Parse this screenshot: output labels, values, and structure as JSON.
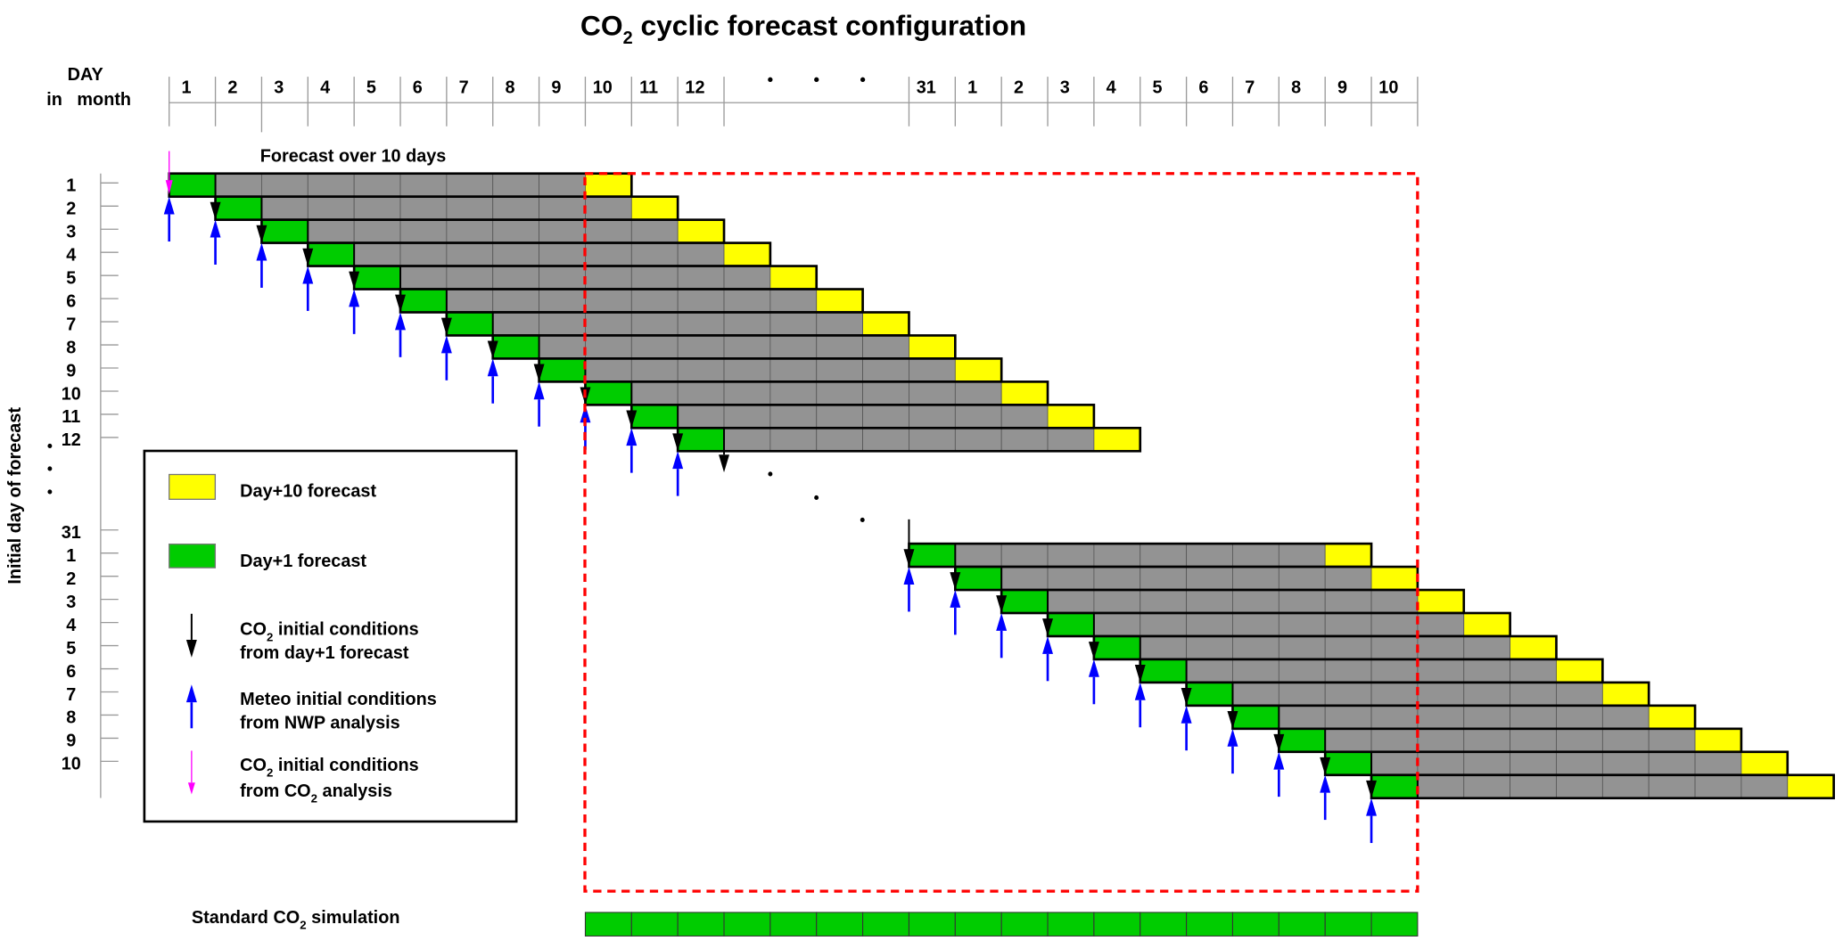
{
  "title": {
    "prefix": "CO",
    "sub": "2",
    "rest": " cyclic forecast configuration"
  },
  "top_axis": {
    "label_line1": "DAY",
    "label_line2": "in   month",
    "day_labels": [
      "1",
      "2",
      "3",
      "4",
      "5",
      "6",
      "7",
      "8",
      "9",
      "10",
      "11",
      "12",
      "",
      "",
      "",
      "",
      "31",
      "1",
      "2",
      "3",
      "4",
      "5",
      "6",
      "7",
      "8",
      "9",
      "10"
    ],
    "gap_marker": "•"
  },
  "forecast_span_label": "Forecast over 10 days",
  "left_axis": {
    "title": "Initial day of forecast",
    "row_labels": [
      "1",
      "2",
      "3",
      "4",
      "5",
      "6",
      "7",
      "8",
      "9",
      "10",
      "11",
      "12",
      "•",
      "•",
      "•",
      "31",
      "1",
      "2",
      "3",
      "4",
      "5",
      "6",
      "7",
      "8",
      "9",
      "10"
    ]
  },
  "forecast_length_days": 10,
  "legend": {
    "day10": "Day+10 forecast",
    "day1": "Day+1 forecast",
    "co2_from_day1": {
      "line1_prefix": "CO",
      "line1_sub": "2",
      "line1_rest": " initial conditions",
      "line2": "from day+1 forecast"
    },
    "meteo": {
      "line1": "Meteo initial conditions",
      "line2": "from NWP analysis"
    },
    "co2_from_analysis": {
      "line1_prefix": "CO",
      "line1_sub": "2",
      "line1_rest": " initial conditions",
      "line2_prefix": "from CO",
      "line2_sub": "2",
      "line2_rest": " analysis"
    }
  },
  "standard_simulation": {
    "prefix": "Standard CO",
    "sub": "2",
    "rest": " simulation"
  },
  "colors": {
    "day1": "#00cc00",
    "day10": "#ffff00",
    "intermediate": "#939393",
    "meteo_arrow": "#0000ff",
    "co2_analysis_arrow": "#ff00ff",
    "co2_forecast_arrow": "#000000",
    "highlight_box": "#ff0000"
  }
}
